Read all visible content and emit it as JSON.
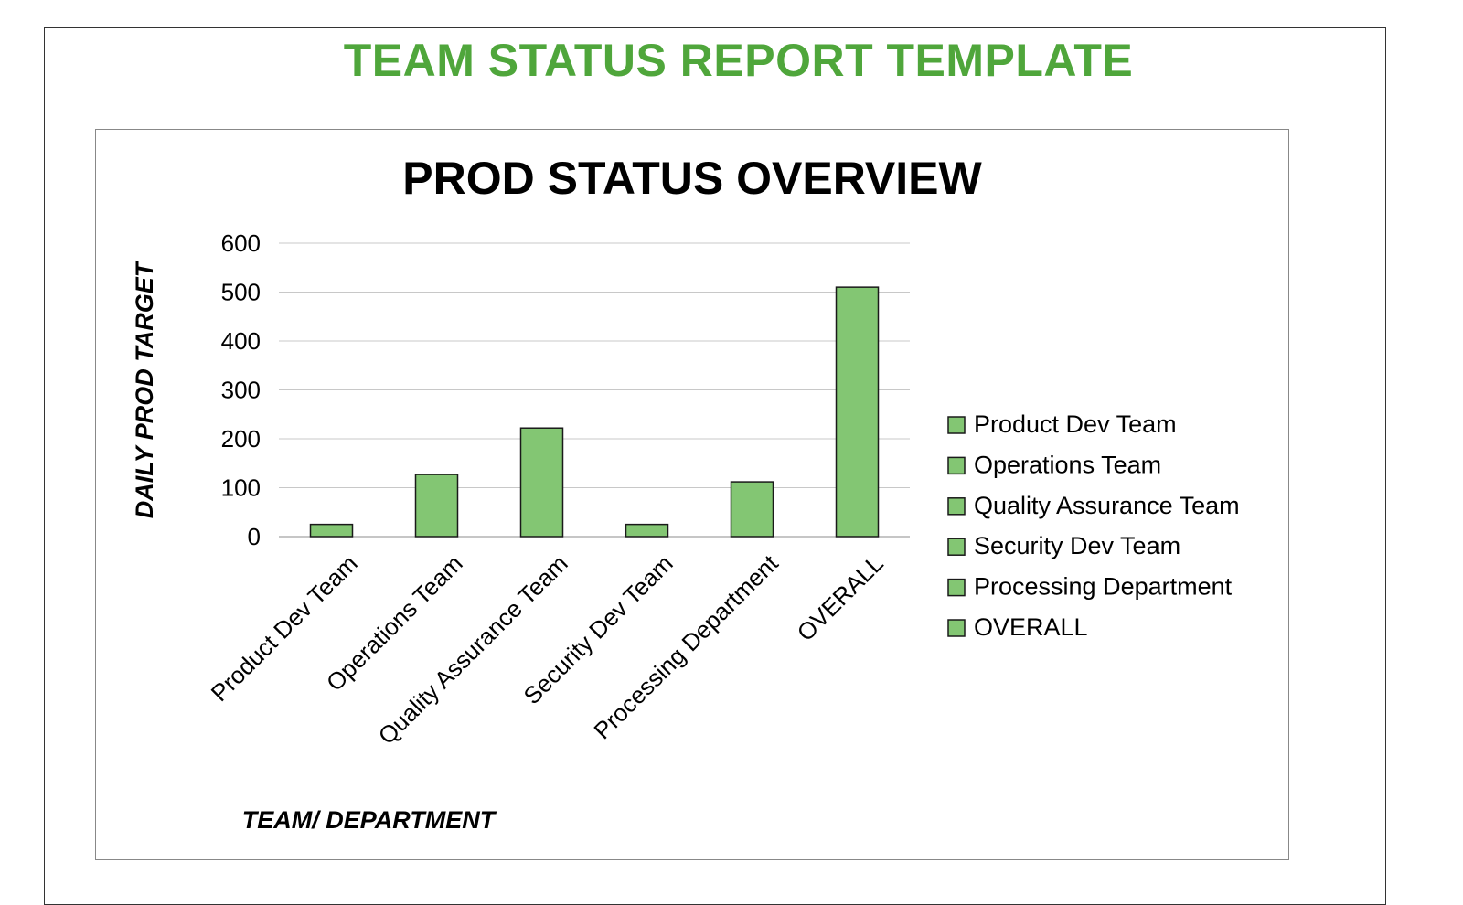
{
  "report": {
    "title": "TEAM STATUS REPORT TEMPLATE"
  },
  "colors": {
    "title_green": "#4fa63b",
    "bar_fill": "#83c673",
    "bar_stroke": "#1a1a1a",
    "gridline": "#c8c8c8"
  },
  "chart_data": {
    "type": "bar",
    "title": "PROD STATUS OVERVIEW",
    "xlabel": "TEAM/ DEPARTMENT",
    "ylabel": "DAILY PROD TARGET",
    "categories": [
      "Product Dev Team",
      "Operations Team",
      "Quality Assurance Team",
      "Security Dev Team",
      "Processing Department",
      "OVERALL"
    ],
    "values": [
      25,
      127,
      222,
      25,
      112,
      510
    ],
    "ylim": [
      0,
      600
    ],
    "yticks": [
      0,
      100,
      200,
      300,
      400,
      500,
      600
    ],
    "grid": true,
    "legend_position": "right",
    "legend": [
      "Product Dev Team",
      "Operations Team",
      "Quality Assurance Team",
      "Security Dev Team",
      "Processing Department",
      "OVERALL"
    ]
  }
}
